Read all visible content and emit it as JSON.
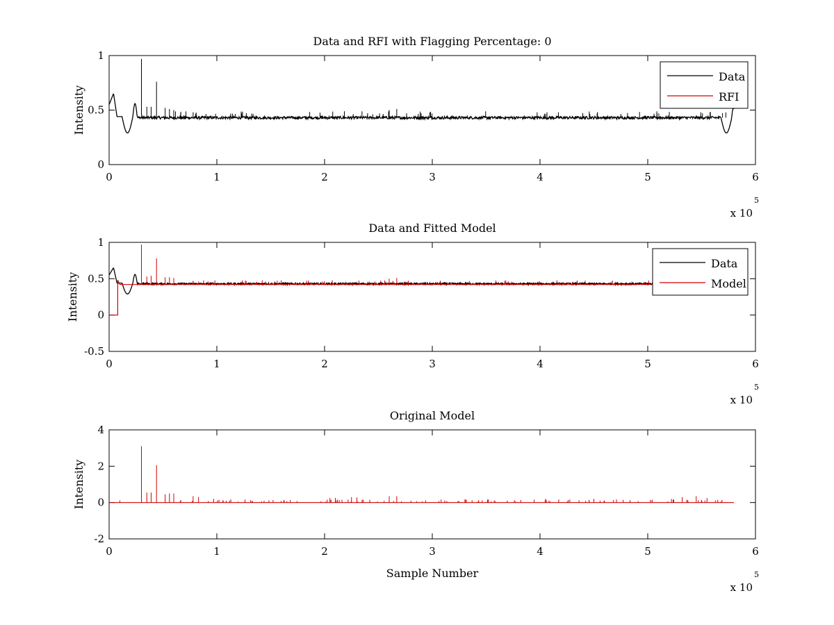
{
  "chart_data": [
    {
      "type": "line",
      "title": "Data and RFI with Flagging Percentage: 0",
      "xlabel": "",
      "ylabel": "Intensity",
      "xlim": [
        0,
        600000
      ],
      "ylim": [
        0,
        1
      ],
      "xticks": [
        0,
        100000,
        200000,
        300000,
        400000,
        500000,
        600000
      ],
      "xtick_labels": [
        "0",
        "1",
        "2",
        "3",
        "4",
        "5",
        "6"
      ],
      "yticks": [
        0,
        0.5,
        1
      ],
      "ytick_labels": [
        "0",
        "0.5",
        "1"
      ],
      "x_multiplier_text": "x 10",
      "x_multiplier_exp": "5",
      "legend": {
        "position": "top-right",
        "entries": [
          "Data",
          "RFI"
        ]
      },
      "grid": false,
      "series": [
        {
          "name": "Data",
          "color": "#000000",
          "kind": "data",
          "baseline": 0.43,
          "features": [
            {
              "x": 2000,
              "y": 0.66
            },
            {
              "x": 17000,
              "y": 0.29
            },
            {
              "x": 24000,
              "y": 0.56
            },
            {
              "x": 575000,
              "y": 0.29
            },
            {
              "x": 580000,
              "y": 0.52
            }
          ],
          "spikes": [
            {
              "x": 30000,
              "y": 0.97
            },
            {
              "x": 35000,
              "y": 0.53
            },
            {
              "x": 39000,
              "y": 0.53
            },
            {
              "x": 44000,
              "y": 0.76
            },
            {
              "x": 52000,
              "y": 0.52
            },
            {
              "x": 56000,
              "y": 0.51
            },
            {
              "x": 60000,
              "y": 0.5
            },
            {
              "x": 78000,
              "y": 0.48
            },
            {
              "x": 260000,
              "y": 0.5
            },
            {
              "x": 267000,
              "y": 0.51
            }
          ]
        },
        {
          "name": "RFI",
          "color": "#d00000",
          "kind": "empty"
        }
      ]
    },
    {
      "type": "line",
      "title": "Data and Fitted Model",
      "xlabel": "",
      "ylabel": "Intensity",
      "xlim": [
        0,
        600000
      ],
      "ylim": [
        -0.5,
        1
      ],
      "xticks": [
        0,
        100000,
        200000,
        300000,
        400000,
        500000,
        600000
      ],
      "xtick_labels": [
        "0",
        "1",
        "2",
        "3",
        "4",
        "5",
        "6"
      ],
      "yticks": [
        -0.5,
        0,
        0.5,
        1
      ],
      "ytick_labels": [
        "-0.5",
        "0",
        "0.5",
        "1"
      ],
      "x_multiplier_text": "x 10",
      "x_multiplier_exp": "5",
      "legend": {
        "position": "top-right",
        "entries": [
          "Data",
          "Model"
        ]
      },
      "grid": false,
      "series": [
        {
          "name": "Data",
          "color": "#000000",
          "kind": "data",
          "baseline": 0.43,
          "features": [
            {
              "x": 2000,
              "y": 0.66
            },
            {
              "x": 17000,
              "y": 0.29
            },
            {
              "x": 24000,
              "y": 0.56
            },
            {
              "x": 575000,
              "y": 0.29
            },
            {
              "x": 580000,
              "y": 0.52
            }
          ],
          "spikes": []
        },
        {
          "name": "Model",
          "color": "#d00000",
          "kind": "model",
          "baseline": 0.42,
          "initial": {
            "x0": 0,
            "x1": 8000,
            "y": 0.0
          },
          "spikes": [
            {
              "x": 30000,
              "y": 0.97
            },
            {
              "x": 35000,
              "y": 0.53
            },
            {
              "x": 39000,
              "y": 0.54
            },
            {
              "x": 44000,
              "y": 0.78
            },
            {
              "x": 52000,
              "y": 0.52
            },
            {
              "x": 56000,
              "y": 0.52
            },
            {
              "x": 60000,
              "y": 0.51
            },
            {
              "x": 78000,
              "y": 0.47
            },
            {
              "x": 83000,
              "y": 0.46
            },
            {
              "x": 260000,
              "y": 0.5
            },
            {
              "x": 267000,
              "y": 0.51
            }
          ]
        }
      ]
    },
    {
      "type": "line",
      "title": "Original Model",
      "xlabel": "Sample Number",
      "ylabel": "Intensity",
      "xlim": [
        0,
        600000
      ],
      "ylim": [
        -2,
        4
      ],
      "xticks": [
        0,
        100000,
        200000,
        300000,
        400000,
        500000,
        600000
      ],
      "xtick_labels": [
        "0",
        "1",
        "2",
        "3",
        "4",
        "5",
        "6"
      ],
      "yticks": [
        -2,
        0,
        2,
        4
      ],
      "ytick_labels": [
        "-2",
        "0",
        "2",
        "4"
      ],
      "x_multiplier_text": "x 10",
      "x_multiplier_exp": "5",
      "grid": false,
      "series": [
        {
          "name": "Model",
          "color": "#d00000",
          "kind": "spikes",
          "baseline": 0.0,
          "spikes": [
            {
              "x": 10000,
              "y": 0.12
            },
            {
              "x": 30000,
              "y": 3.1
            },
            {
              "x": 35000,
              "y": 0.55
            },
            {
              "x": 39000,
              "y": 0.55
            },
            {
              "x": 44000,
              "y": 2.05
            },
            {
              "x": 52000,
              "y": 0.45
            },
            {
              "x": 56000,
              "y": 0.5
            },
            {
              "x": 60000,
              "y": 0.5
            },
            {
              "x": 78000,
              "y": 0.35
            },
            {
              "x": 83000,
              "y": 0.3
            },
            {
              "x": 97000,
              "y": 0.2
            },
            {
              "x": 102000,
              "y": 0.15
            },
            {
              "x": 205000,
              "y": 0.25
            },
            {
              "x": 210000,
              "y": 0.25
            },
            {
              "x": 225000,
              "y": 0.3
            },
            {
              "x": 230000,
              "y": 0.28
            },
            {
              "x": 260000,
              "y": 0.35
            },
            {
              "x": 267000,
              "y": 0.35
            },
            {
              "x": 405000,
              "y": 0.2
            },
            {
              "x": 450000,
              "y": 0.2
            },
            {
              "x": 522000,
              "y": 0.2
            },
            {
              "x": 532000,
              "y": 0.3
            },
            {
              "x": 545000,
              "y": 0.35
            },
            {
              "x": 555000,
              "y": 0.25
            },
            {
              "x": 565000,
              "y": 0.15
            }
          ],
          "minor_spike_height": 0.12,
          "x_end": 580000
        }
      ]
    }
  ]
}
